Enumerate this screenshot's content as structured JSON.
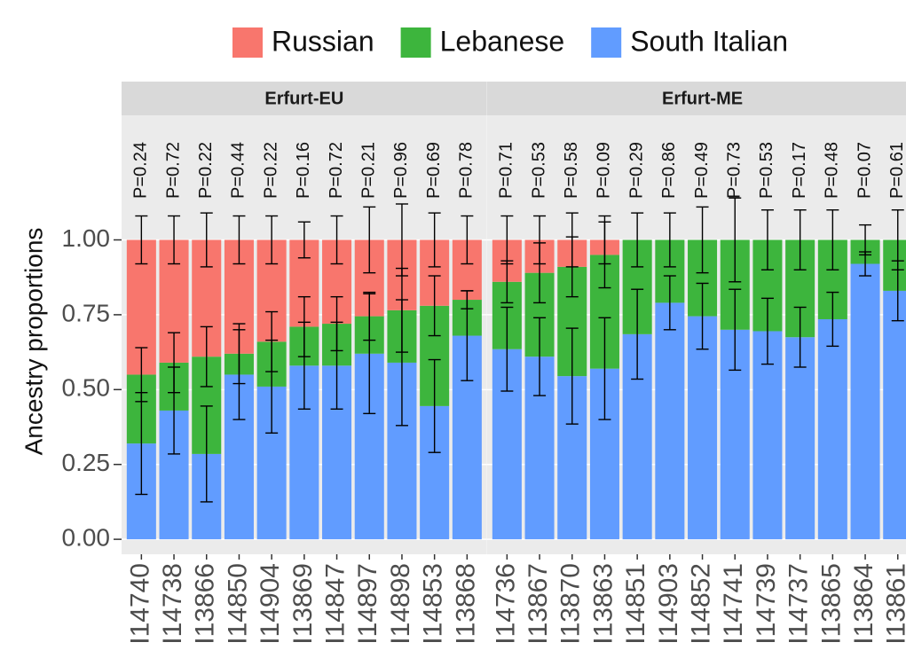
{
  "chart_data": {
    "type": "bar",
    "stacked": true,
    "y_label": "Ancestry proportions",
    "ylim": [
      -0.05,
      1.12
    ],
    "yticks": [
      {
        "value": 0,
        "label": "0.00"
      },
      {
        "value": 0.25,
        "label": "0.25"
      },
      {
        "value": 0.5,
        "label": "0.50"
      },
      {
        "value": 0.75,
        "label": "0.75"
      },
      {
        "value": 1,
        "label": "1.00"
      }
    ],
    "grid": true,
    "legend": "top",
    "series": [
      {
        "name": "Russian",
        "color": "#F8766D"
      },
      {
        "name": "Lebanese",
        "color": "#3DB53D"
      },
      {
        "name": "South Italian",
        "color": "#619CFF"
      }
    ],
    "facets": [
      {
        "title": "Erfurt-EU",
        "categories": [
          "I14740",
          "I14738",
          "I13866",
          "I14850",
          "I14904",
          "I13869",
          "I14847",
          "I14897",
          "I14898",
          "I14853",
          "I13868"
        ],
        "annotations": [
          "P=0.24",
          "P=0.72",
          "P=0.22",
          "P=0.44",
          "P=0.22",
          "P=0.16",
          "P=0.72",
          "P=0.21",
          "P=0.96",
          "P=0.69",
          "P=0.78"
        ],
        "series": [
          {
            "values": [
              0.45,
              0.41,
              0.39,
              0.38,
              0.34,
              0.29,
              0.28,
              0.255,
              0.235,
              0.22,
              0.2
            ],
            "errors": [
              0.08,
              0.08,
              0.09,
              0.08,
              0.08,
              0.06,
              0.08,
              0.11,
              0.12,
              0.09,
              0.08
            ]
          },
          {
            "values": [
              0.23,
              0.16,
              0.325,
              0.07,
              0.15,
              0.13,
              0.14,
              0.125,
              0.175,
              0.335,
              0.12
            ],
            "errors": [
              0.09,
              0.1,
              0.1,
              0.1,
              0.1,
              0.1,
              0.09,
              0.08,
              0.14,
              0.1,
              0.03
            ]
          },
          {
            "values": [
              0.32,
              0.43,
              0.285,
              0.55,
              0.51,
              0.58,
              0.58,
              0.62,
              0.59,
              0.445,
              0.68
            ],
            "errors": [
              0.17,
              0.145,
              0.16,
              0.15,
              0.155,
              0.145,
              0.145,
              0.2,
              0.21,
              0.155,
              0.15
            ]
          }
        ]
      },
      {
        "title": "Erfurt-ME",
        "categories": [
          "I14736",
          "I13867",
          "I13870",
          "I13863",
          "I14851",
          "I14903",
          "I14852",
          "I14741",
          "I14739",
          "I14737",
          "I13865",
          "I13864",
          "I13861"
        ],
        "annotations": [
          "P=0.71",
          "P=0.53",
          "P=0.58",
          "P=0.09",
          "P=0.29",
          "P=0.86",
          "P=0.49",
          "P=0.73",
          "P=0.53",
          "P=0.17",
          "P=0.48",
          "P=0.07",
          "P=0.61"
        ],
        "series": [
          {
            "values": [
              0.14,
              0.11,
              0.09,
              0.05,
              0,
              0,
              0,
              0,
              0,
              0,
              0,
              0,
              0
            ],
            "errors": [
              0.08,
              0.08,
              0.09,
              0.08,
              null,
              null,
              null,
              null,
              null,
              null,
              null,
              null,
              null
            ]
          },
          {
            "values": [
              0.225,
              0.28,
              0.365,
              0.38,
              0.315,
              0.21,
              0.255,
              0.3,
              0.305,
              0.325,
              0.265,
              0.08,
              0.17
            ],
            "errors": [
              0.07,
              0.1,
              0.1,
              0.11,
              0.09,
              0.09,
              0.11,
              0.14,
              0.1,
              0.1,
              0.1,
              0.05,
              0.1
            ]
          },
          {
            "values": [
              0.635,
              0.61,
              0.545,
              0.57,
              0.685,
              0.79,
              0.745,
              0.7,
              0.695,
              0.675,
              0.735,
              0.92,
              0.83
            ],
            "errors": [
              0.14,
              0.13,
              0.16,
              0.17,
              0.15,
              0.09,
              0.11,
              0.135,
              0.11,
              0.1,
              0.09,
              0.04,
              0.1
            ]
          }
        ]
      }
    ]
  }
}
